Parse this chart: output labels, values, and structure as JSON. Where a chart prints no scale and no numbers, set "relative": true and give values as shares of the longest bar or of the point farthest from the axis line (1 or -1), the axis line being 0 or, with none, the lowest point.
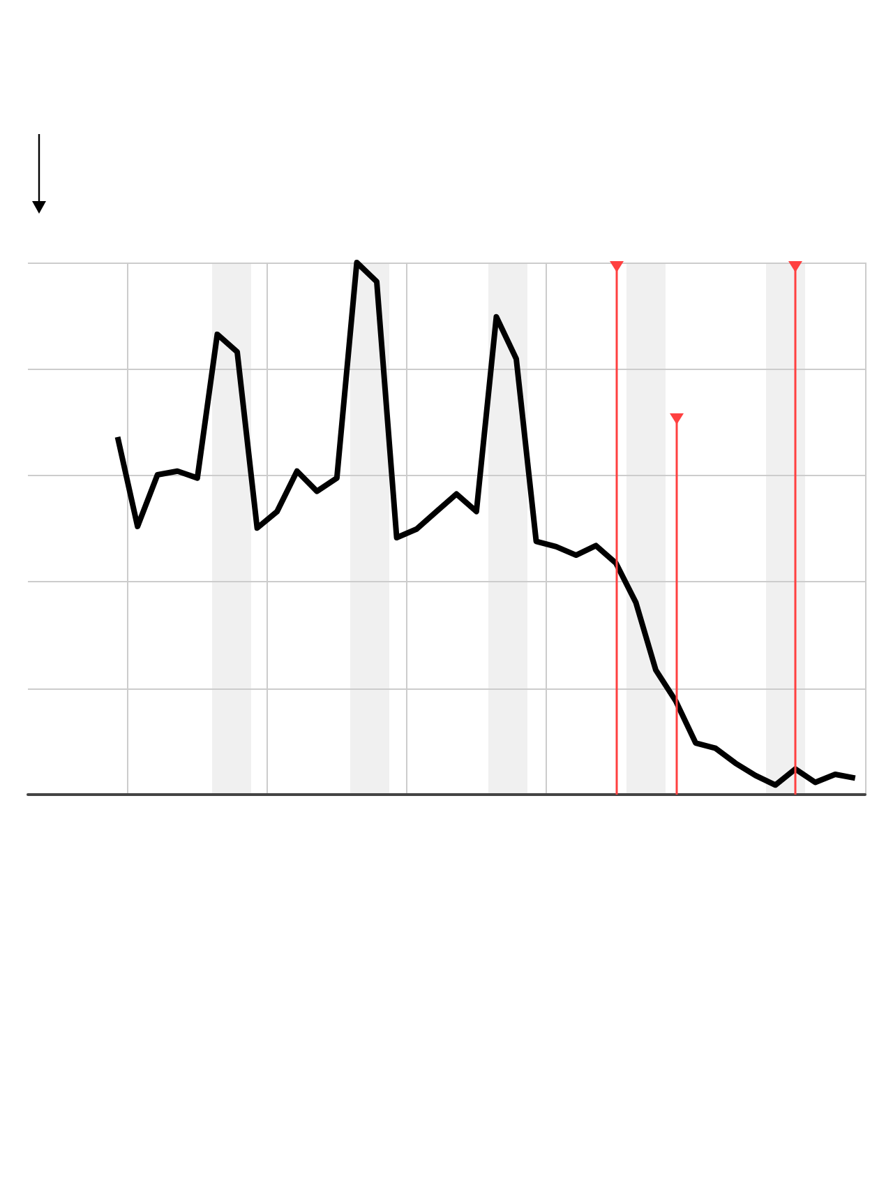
{
  "chart_data": {
    "type": "line",
    "relative": true,
    "grid": true,
    "marker": "none",
    "line_style": "solid",
    "categories": [
      null,
      null,
      null,
      null,
      null,
      null,
      null,
      null,
      null,
      null,
      null,
      null,
      null,
      null,
      null,
      null,
      null,
      null,
      null,
      null,
      null,
      null,
      null,
      null,
      null,
      null,
      null,
      null,
      null,
      null,
      null,
      null,
      null,
      null,
      null,
      null,
      null,
      null,
      null,
      null,
      null,
      null
    ],
    "series": [
      {
        "color": "#000000",
        "values": [
          null,
          null,
          null,
          null,
          0.672,
          0.504,
          0.601,
          0.608,
          0.595,
          0.865,
          0.832,
          0.501,
          0.532,
          0.608,
          0.57,
          0.595,
          1,
          0.964,
          0.483,
          0.499,
          0.532,
          0.565,
          0.532,
          0.898,
          0.819,
          0.476,
          0.466,
          0.45,
          0.468,
          0.435,
          0.361,
          0.234,
          0.176,
          0.097,
          0.087,
          0.059,
          0.036,
          0.018,
          0.048,
          0.023,
          0.038,
          0.031
        ]
      }
    ]
  }
}
